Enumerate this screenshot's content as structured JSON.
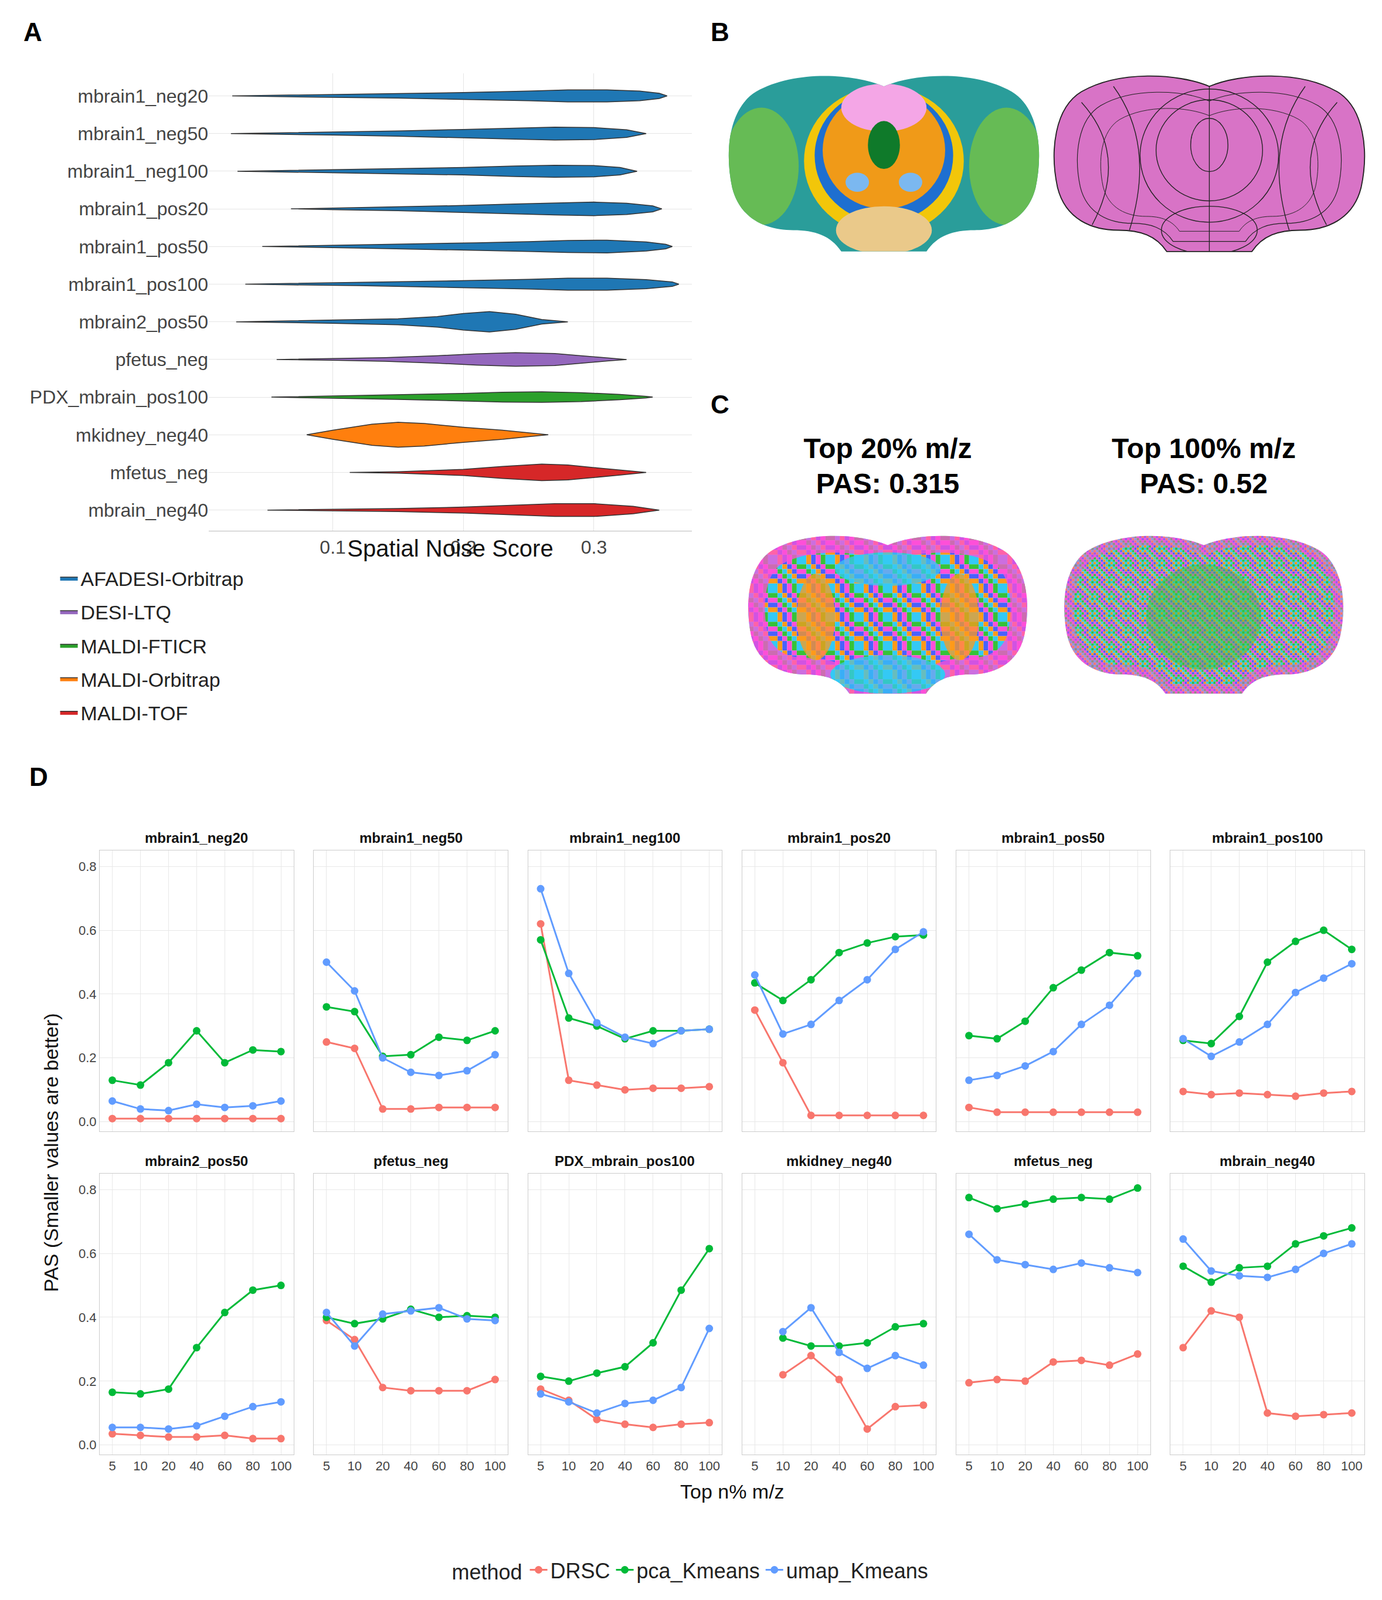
{
  "panel_labels": [
    "A",
    "B",
    "C",
    "D"
  ],
  "image_titles": [
    [
      "Top 20% m/z",
      "PAS: 0.315"
    ],
    [
      "Top 100% m/z",
      "PAS: 0.52"
    ]
  ],
  "chart_data": [
    {
      "type": "violin",
      "xlabel": "Spatial Noise Score",
      "xlim": [
        0.005,
        0.375
      ],
      "xticks": [
        0.1,
        0.2,
        0.3
      ],
      "grid": true,
      "legend": "bottom",
      "categories": [
        "mbrain1_neg20",
        "mbrain1_neg50",
        "mbrain1_neg100",
        "mbrain1_pos20",
        "mbrain1_pos50",
        "mbrain1_pos100",
        "mbrain2_pos50",
        "pfetus_neg",
        "PDX_mbrain_pos100",
        "mkidney_neg40",
        "mfetus_neg",
        "mbrain_neg40"
      ],
      "series": [
        {
          "name": "AFADESI-Orbitrap",
          "color": "#1f77b4"
        },
        {
          "name": "DESI-LTQ",
          "color": "#9467bd"
        },
        {
          "name": "MALDI-FTICR",
          "color": "#2ca02c"
        },
        {
          "name": "MALDI-Orbitrap",
          "color": "#ff7f0e"
        },
        {
          "name": "MALDI-TOF",
          "color": "#d62728"
        }
      ],
      "violins": [
        {
          "category": "mbrain1_neg20",
          "group": "AFADESI-Orbitrap",
          "density_x": [
            0.023,
            0.06,
            0.1,
            0.15,
            0.2,
            0.25,
            0.28,
            0.31,
            0.335,
            0.35,
            0.356
          ],
          "density": [
            0,
            0.02,
            0.04,
            0.06,
            0.09,
            0.13,
            0.16,
            0.16,
            0.13,
            0.07,
            0
          ]
        },
        {
          "category": "mbrain1_neg50",
          "group": "AFADESI-Orbitrap",
          "density_x": [
            0.022,
            0.06,
            0.1,
            0.15,
            0.2,
            0.24,
            0.27,
            0.3,
            0.325,
            0.34
          ],
          "density": [
            0,
            0.02,
            0.04,
            0.07,
            0.11,
            0.15,
            0.17,
            0.16,
            0.1,
            0
          ]
        },
        {
          "category": "mbrain1_neg100",
          "group": "AFADESI-Orbitrap",
          "density_x": [
            0.027,
            0.06,
            0.1,
            0.15,
            0.2,
            0.24,
            0.27,
            0.3,
            0.32,
            0.333
          ],
          "density": [
            0,
            0.02,
            0.04,
            0.07,
            0.1,
            0.14,
            0.16,
            0.15,
            0.1,
            0
          ]
        },
        {
          "category": "mbrain1_pos20",
          "group": "AFADESI-Orbitrap",
          "density_x": [
            0.068,
            0.1,
            0.15,
            0.2,
            0.24,
            0.27,
            0.3,
            0.325,
            0.345,
            0.352
          ],
          "density": [
            0,
            0.02,
            0.05,
            0.09,
            0.13,
            0.16,
            0.18,
            0.15,
            0.08,
            0
          ]
        },
        {
          "category": "mbrain1_pos50",
          "group": "AFADESI-Orbitrap",
          "density_x": [
            0.046,
            0.08,
            0.12,
            0.17,
            0.21,
            0.25,
            0.28,
            0.31,
            0.34,
            0.355,
            0.36
          ],
          "density": [
            0,
            0.02,
            0.04,
            0.07,
            0.1,
            0.13,
            0.16,
            0.17,
            0.12,
            0.06,
            0
          ]
        },
        {
          "category": "mbrain1_pos100",
          "group": "AFADESI-Orbitrap",
          "density_x": [
            0.033,
            0.07,
            0.12,
            0.17,
            0.21,
            0.25,
            0.28,
            0.31,
            0.34,
            0.36,
            0.365
          ],
          "density": [
            0,
            0.02,
            0.04,
            0.07,
            0.1,
            0.13,
            0.16,
            0.16,
            0.12,
            0.06,
            0
          ]
        },
        {
          "category": "mbrain2_pos50",
          "group": "AFADESI-Orbitrap",
          "density_x": [
            0.026,
            0.06,
            0.1,
            0.15,
            0.18,
            0.2,
            0.22,
            0.24,
            0.26,
            0.28
          ],
          "density": [
            0,
            0.02,
            0.04,
            0.08,
            0.14,
            0.22,
            0.27,
            0.2,
            0.06,
            0
          ]
        },
        {
          "category": "pfetus_neg",
          "group": "DESI-LTQ",
          "density_x": [
            0.057,
            0.1,
            0.14,
            0.18,
            0.21,
            0.24,
            0.27,
            0.29,
            0.31,
            0.325
          ],
          "density": [
            0,
            0.02,
            0.05,
            0.1,
            0.15,
            0.18,
            0.16,
            0.1,
            0.04,
            0
          ]
        },
        {
          "category": "PDX_mbrain_pos100",
          "group": "MALDI-FTICR",
          "density_x": [
            0.053,
            0.1,
            0.15,
            0.2,
            0.23,
            0.26,
            0.29,
            0.32,
            0.34,
            0.345
          ],
          "density": [
            0,
            0.03,
            0.06,
            0.1,
            0.13,
            0.14,
            0.12,
            0.07,
            0.02,
            0
          ]
        },
        {
          "category": "mkidney_neg40",
          "group": "MALDI-Orbitrap",
          "density_x": [
            0.08,
            0.1,
            0.13,
            0.15,
            0.17,
            0.2,
            0.23,
            0.25,
            0.265
          ],
          "density": [
            0,
            0.12,
            0.28,
            0.33,
            0.3,
            0.2,
            0.12,
            0.05,
            0
          ]
        },
        {
          "category": "mfetus_neg",
          "group": "MALDI-TOF",
          "density_x": [
            0.113,
            0.15,
            0.2,
            0.23,
            0.26,
            0.28,
            0.3,
            0.32,
            0.34
          ],
          "density": [
            0,
            0.02,
            0.08,
            0.16,
            0.22,
            0.2,
            0.13,
            0.07,
            0
          ]
        },
        {
          "category": "mbrain_neg40",
          "group": "MALDI-TOF",
          "density_x": [
            0.05,
            0.1,
            0.15,
            0.2,
            0.24,
            0.27,
            0.3,
            0.33,
            0.35
          ],
          "density": [
            0,
            0.02,
            0.04,
            0.08,
            0.13,
            0.17,
            0.17,
            0.1,
            0
          ]
        }
      ]
    },
    {
      "type": "line",
      "xlabel": "Top n% m/z",
      "ylabel": "PAS (Smaller values are better)",
      "categories": [
        "5",
        "10",
        "20",
        "40",
        "60",
        "80",
        "100"
      ],
      "ylim": [
        -0.03,
        0.85
      ],
      "yticks": [
        {
          "value": 0,
          "label": "0.0"
        },
        0.2,
        0.4,
        0.6,
        0.8
      ],
      "grid": true,
      "legend": "bottom",
      "legend_title": "method",
      "marker": "circle",
      "methods": [
        {
          "name": "DRSC",
          "color": "#F8766D"
        },
        {
          "name": "pca_Kmeans",
          "color": "#00BA38"
        },
        {
          "name": "umap_Kmeans",
          "color": "#619CFF"
        }
      ],
      "panels": [
        {
          "title": "mbrain1_neg20",
          "series": [
            {
              "name": "DRSC",
              "values": [
                0.01,
                0.01,
                0.01,
                0.01,
                0.01,
                0.01,
                0.01
              ]
            },
            {
              "name": "pca_Kmeans",
              "values": [
                0.13,
                0.115,
                0.185,
                0.285,
                0.185,
                0.225,
                0.22
              ]
            },
            {
              "name": "umap_Kmeans",
              "values": [
                0.065,
                0.04,
                0.035,
                0.055,
                0.045,
                0.05,
                0.065
              ]
            }
          ]
        },
        {
          "title": "mbrain1_neg50",
          "series": [
            {
              "name": "DRSC",
              "values": [
                0.25,
                0.23,
                0.04,
                0.04,
                0.045,
                0.045,
                0.045
              ]
            },
            {
              "name": "pca_Kmeans",
              "values": [
                0.36,
                0.345,
                0.205,
                0.21,
                0.265,
                0.255,
                0.285
              ]
            },
            {
              "name": "umap_Kmeans",
              "values": [
                0.5,
                0.41,
                0.2,
                0.155,
                0.145,
                0.16,
                0.21
              ]
            }
          ]
        },
        {
          "title": "mbrain1_neg100",
          "series": [
            {
              "name": "DRSC",
              "values": [
                0.62,
                0.13,
                0.115,
                0.1,
                0.105,
                0.105,
                0.11
              ]
            },
            {
              "name": "pca_Kmeans",
              "values": [
                0.57,
                0.325,
                0.3,
                0.26,
                0.285,
                0.285,
                0.29
              ]
            },
            {
              "name": "umap_Kmeans",
              "values": [
                0.73,
                0.465,
                0.31,
                0.265,
                0.245,
                0.285,
                0.29
              ]
            }
          ]
        },
        {
          "title": "mbrain1_pos20",
          "series": [
            {
              "name": "DRSC",
              "values": [
                0.35,
                0.185,
                0.02,
                0.02,
                0.02,
                0.02,
                0.02
              ]
            },
            {
              "name": "pca_Kmeans",
              "values": [
                0.435,
                0.38,
                0.445,
                0.53,
                0.56,
                0.58,
                0.585
              ]
            },
            {
              "name": "umap_Kmeans",
              "values": [
                0.46,
                0.275,
                0.305,
                0.38,
                0.445,
                0.54,
                0.595
              ]
            }
          ]
        },
        {
          "title": "mbrain1_pos50",
          "series": [
            {
              "name": "DRSC",
              "values": [
                0.045,
                0.03,
                0.03,
                0.03,
                0.03,
                0.03,
                0.03
              ]
            },
            {
              "name": "pca_Kmeans",
              "values": [
                0.27,
                0.26,
                0.315,
                0.42,
                0.475,
                0.53,
                0.52
              ]
            },
            {
              "name": "umap_Kmeans",
              "values": [
                0.13,
                0.145,
                0.175,
                0.22,
                0.305,
                0.365,
                0.465
              ]
            }
          ]
        },
        {
          "title": "mbrain1_pos100",
          "series": [
            {
              "name": "DRSC",
              "values": [
                0.095,
                0.085,
                0.09,
                0.085,
                0.08,
                0.09,
                0.095
              ]
            },
            {
              "name": "pca_Kmeans",
              "values": [
                0.255,
                0.245,
                0.33,
                0.5,
                0.565,
                0.6,
                0.54
              ]
            },
            {
              "name": "umap_Kmeans",
              "values": [
                0.26,
                0.205,
                0.25,
                0.305,
                0.405,
                0.45,
                0.495
              ]
            }
          ]
        },
        {
          "title": "mbrain2_pos50",
          "series": [
            {
              "name": "DRSC",
              "values": [
                0.035,
                0.03,
                0.025,
                0.025,
                0.03,
                0.02,
                0.02
              ]
            },
            {
              "name": "pca_Kmeans",
              "values": [
                0.165,
                0.16,
                0.175,
                0.305,
                0.415,
                0.485,
                0.5
              ]
            },
            {
              "name": "umap_Kmeans",
              "values": [
                0.055,
                0.055,
                0.05,
                0.06,
                0.09,
                0.12,
                0.135
              ]
            }
          ]
        },
        {
          "title": "pfetus_neg",
          "series": [
            {
              "name": "DRSC",
              "values": [
                0.39,
                0.33,
                0.18,
                0.17,
                0.17,
                0.17,
                0.205
              ]
            },
            {
              "name": "pca_Kmeans",
              "values": [
                0.4,
                0.38,
                0.395,
                0.425,
                0.4,
                0.405,
                0.4
              ]
            },
            {
              "name": "umap_Kmeans",
              "values": [
                0.415,
                0.31,
                0.41,
                0.42,
                0.43,
                0.395,
                0.39
              ]
            }
          ]
        },
        {
          "title": "PDX_mbrain_pos100",
          "series": [
            {
              "name": "DRSC",
              "values": [
                0.175,
                0.14,
                0.08,
                0.065,
                0.055,
                0.065,
                0.07
              ]
            },
            {
              "name": "pca_Kmeans",
              "values": [
                0.215,
                0.2,
                0.225,
                0.245,
                0.32,
                0.485,
                0.615
              ]
            },
            {
              "name": "umap_Kmeans",
              "values": [
                0.16,
                0.135,
                0.1,
                0.13,
                0.14,
                0.18,
                0.365
              ]
            }
          ]
        },
        {
          "title": "mkidney_neg40",
          "series": [
            {
              "name": "DRSC",
              "values": [
                null,
                0.22,
                0.28,
                0.205,
                0.05,
                0.12,
                0.125
              ]
            },
            {
              "name": "pca_Kmeans",
              "values": [
                null,
                0.335,
                0.31,
                0.31,
                0.32,
                0.37,
                0.38
              ]
            },
            {
              "name": "umap_Kmeans",
              "values": [
                null,
                0.355,
                0.43,
                0.29,
                0.24,
                0.28,
                0.25
              ]
            }
          ]
        },
        {
          "title": "mfetus_neg",
          "series": [
            {
              "name": "DRSC",
              "values": [
                0.195,
                0.205,
                0.2,
                0.26,
                0.265,
                0.25,
                0.285
              ]
            },
            {
              "name": "pca_Kmeans",
              "values": [
                0.775,
                0.74,
                0.755,
                0.77,
                0.775,
                0.77,
                0.805
              ]
            },
            {
              "name": "umap_Kmeans",
              "values": [
                0.66,
                0.58,
                0.565,
                0.55,
                0.57,
                0.555,
                0.54
              ]
            }
          ]
        },
        {
          "title": "mbrain_neg40",
          "series": [
            {
              "name": "DRSC",
              "values": [
                0.305,
                0.42,
                0.4,
                0.1,
                0.09,
                0.095,
                0.1
              ]
            },
            {
              "name": "pca_Kmeans",
              "values": [
                0.56,
                0.51,
                0.555,
                0.56,
                0.63,
                0.655,
                0.68
              ]
            },
            {
              "name": "umap_Kmeans",
              "values": [
                0.645,
                0.545,
                0.53,
                0.525,
                0.55,
                0.6,
                0.63
              ]
            }
          ]
        }
      ]
    }
  ]
}
